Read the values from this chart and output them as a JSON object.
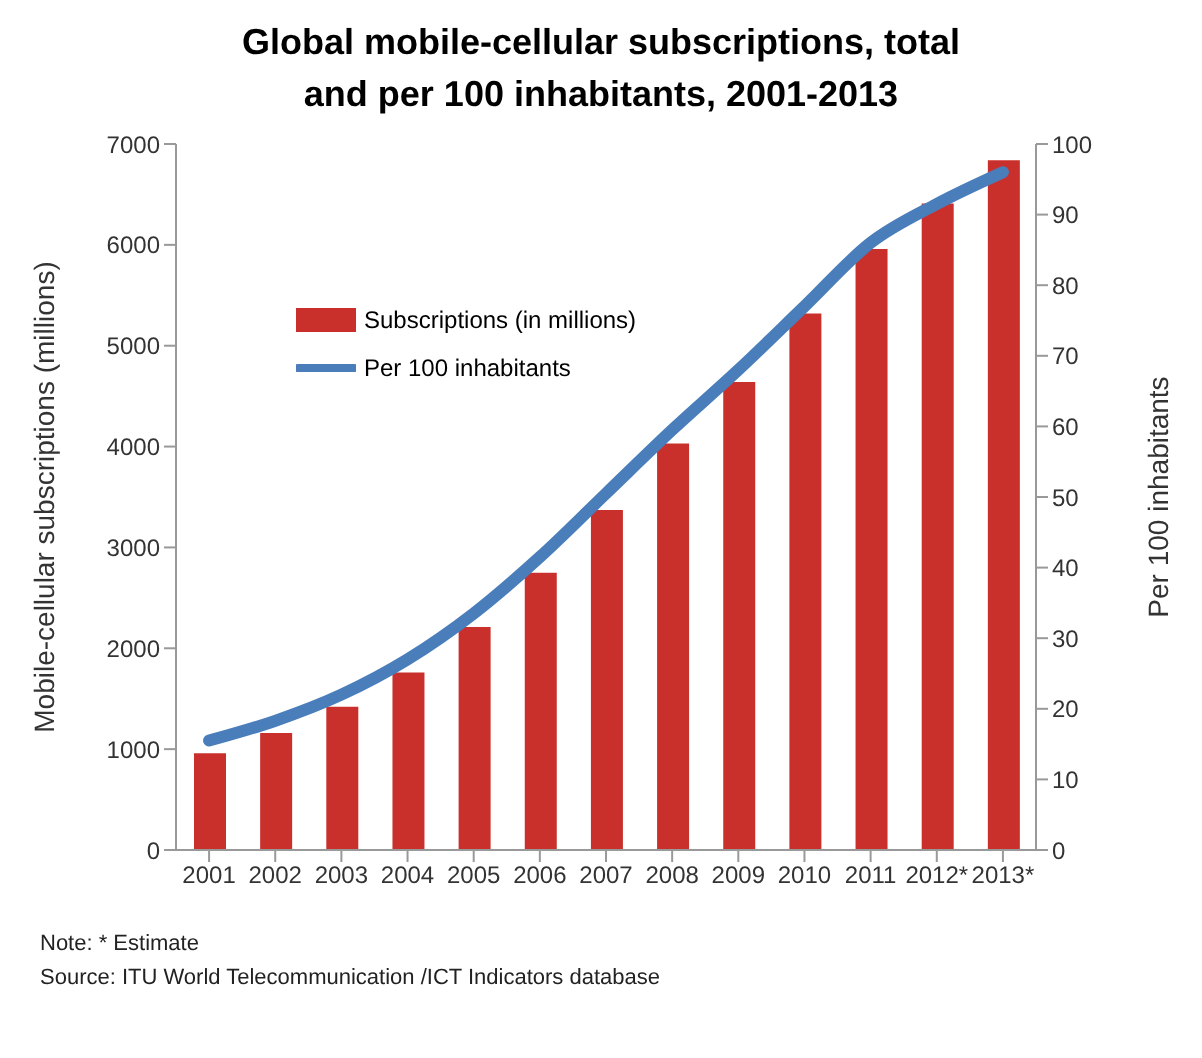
{
  "chart_data": {
    "type": "bar",
    "title": "Global mobile-cellular subscriptions, total and per 100 inhabitants, 2001-2013",
    "ylabel": "Mobile-cellular subscriptions (millions)",
    "y2label": "Per 100 inhabitants",
    "categories": [
      "2001",
      "2002",
      "2003",
      "2004",
      "2005",
      "2006",
      "2007",
      "2008",
      "2009",
      "2010",
      "2011",
      "2012*",
      "2013*"
    ],
    "series": [
      {
        "name": "Subscriptions (in millions)",
        "color": "#c9302c",
        "values": [
          960,
          1160,
          1420,
          1760,
          2210,
          2750,
          3370,
          4030,
          4640,
          5320,
          5960,
          6410,
          6840
        ]
      },
      {
        "name": "Per 100 inhabitants",
        "type": "line",
        "axis": "y2",
        "color": "#4a7ebb",
        "values": [
          15.5,
          18.3,
          22,
          27,
          33.5,
          41.5,
          50.5,
          59.5,
          68,
          77,
          86,
          91.5,
          96
        ]
      }
    ],
    "ylim": [
      0,
      7000
    ],
    "yticks": [
      0,
      1000,
      2000,
      3000,
      4000,
      5000,
      6000,
      7000
    ],
    "y2lim": [
      0,
      100
    ],
    "y2ticks": [
      0,
      10,
      20,
      30,
      40,
      50,
      60,
      70,
      80,
      90,
      100
    ],
    "grid": false,
    "legend": "top left",
    "marker": "none",
    "line_style": "solid",
    "annotations": [
      "Note: * Estimate",
      "Source:  ITU World Telecommunication /ICT Indicators database"
    ]
  }
}
